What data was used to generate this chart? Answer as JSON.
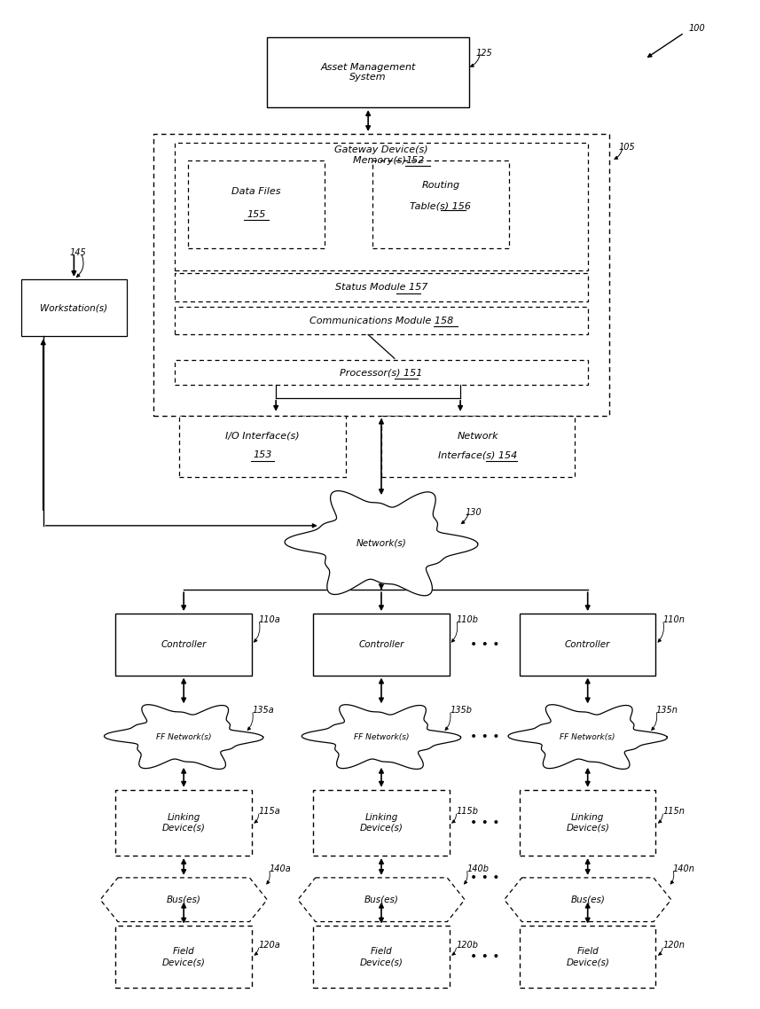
{
  "fig_width": 8.57,
  "fig_height": 11.38,
  "bg_color": "#ffffff",
  "line_color": "#000000",
  "ref_100": "100",
  "ref_125": "125",
  "ref_105": "105",
  "ref_145": "145",
  "ref_130": "130",
  "ref_110a": "110a",
  "ref_110b": "110b",
  "ref_110n": "110n",
  "ref_135a": "135a",
  "ref_135b": "135b",
  "ref_135n": "135n",
  "ref_115a": "115a",
  "ref_115b": "115b",
  "ref_115n": "115n",
  "ref_140a": "140a",
  "ref_140b": "140b",
  "ref_140n": "140n",
  "ref_120a": "120a",
  "ref_120b": "120b",
  "ref_120n": "120n",
  "ref_152": "152",
  "ref_155": "155",
  "ref_156": "156",
  "ref_157": "157",
  "ref_158": "158",
  "ref_151": "151",
  "ref_153": "153",
  "ref_154": "154"
}
